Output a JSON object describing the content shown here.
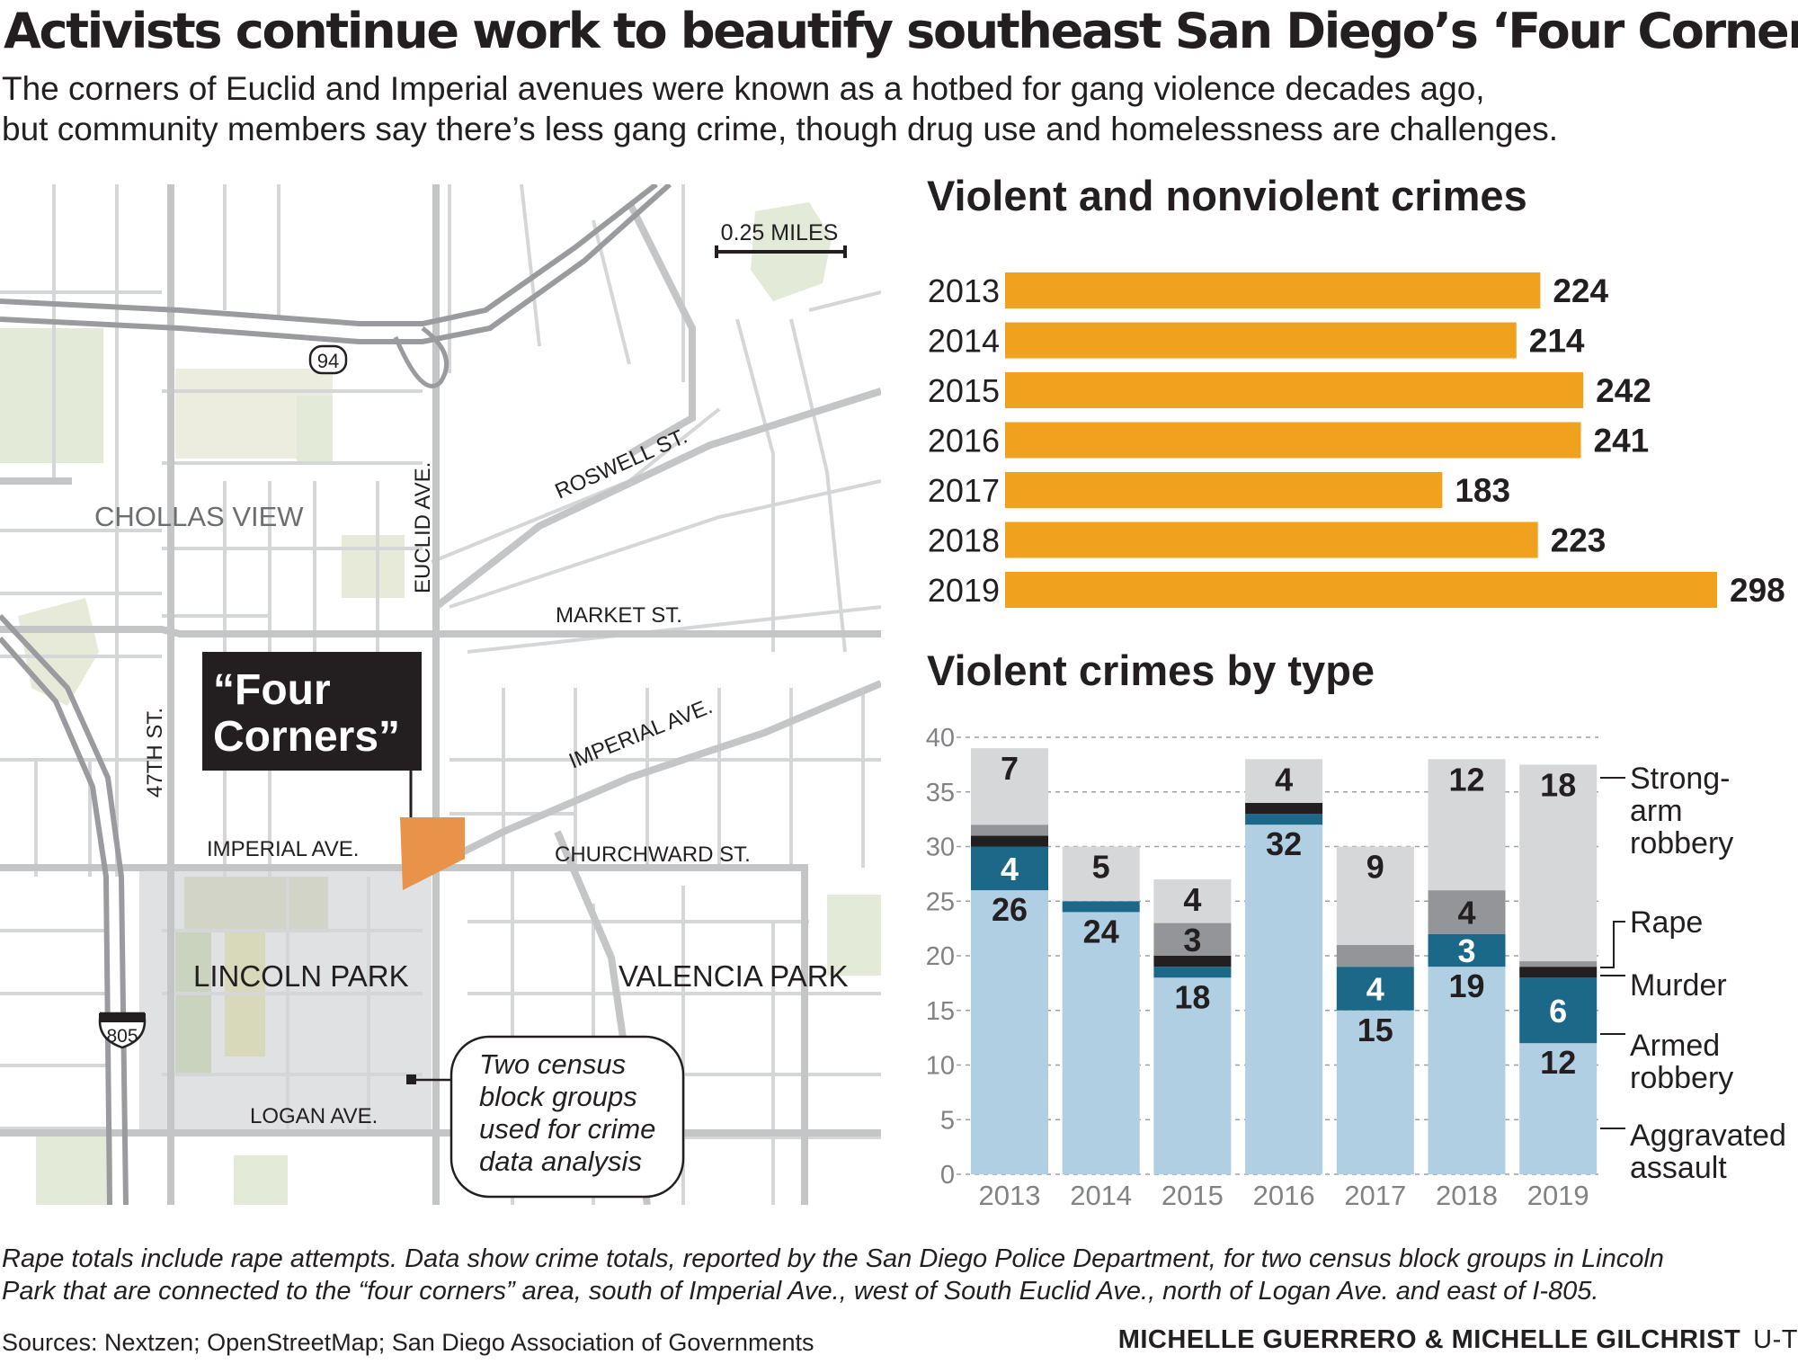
{
  "headline": "Activists continue work to beautify southeast San Diego’s ‘Four Corners’",
  "deck": [
    "The corners of Euclid and Imperial avenues were known as a hotbed for gang violence decades ago,",
    "but community members say there’s less gang crime, though drug use and homelessness are challenges."
  ],
  "map": {
    "scale_label": "0.25 MILES",
    "highway_94": "94",
    "highway_805": "805",
    "neighborhoods": {
      "chollas_view": "CHOLLAS VIEW",
      "lincoln_park": "LINCOLN PARK",
      "valencia_park": "VALENCIA PARK"
    },
    "streets": {
      "euclid": "EUCLID AVE.",
      "roswell": "ROSWELL ST.",
      "market": "MARKET ST.",
      "imperial_east": "IMPERIAL AVE.",
      "imperial_west": "IMPERIAL AVE.",
      "churchward": "CHURCHWARD ST.",
      "forty_seventh": "47TH ST.",
      "logan": "LOGAN AVE."
    },
    "four_corners_label": [
      "“Four",
      "Corners”"
    ],
    "callout": [
      "Two census",
      "block groups",
      "used for crime",
      "data analysis"
    ],
    "colors": {
      "land": "#ffffff",
      "road": "#c9cacc",
      "highway": "#9a9b9e",
      "park": "#e3ead7",
      "study_area": "#e0e1e3",
      "four_corners": "#e8924a"
    }
  },
  "chart_data": [
    {
      "type": "bar",
      "title": "Violent and nonviolent crimes",
      "categories": [
        "2013",
        "2014",
        "2015",
        "2016",
        "2017",
        "2018",
        "2019"
      ],
      "values": [
        224,
        214,
        242,
        241,
        183,
        223,
        298
      ],
      "orientation": "horizontal",
      "color": "#f0a21f"
    },
    {
      "type": "bar",
      "stacked": true,
      "title": "Violent crimes by type",
      "categories": [
        "2013",
        "2014",
        "2015",
        "2016",
        "2017",
        "2018",
        "2019"
      ],
      "ylim": [
        0,
        40
      ],
      "yticks": [
        "0",
        "5",
        "10",
        "15",
        "20",
        "25",
        "30",
        "35",
        "40"
      ],
      "grid": true,
      "legend_position": "right",
      "series": [
        {
          "name": "Aggravated assault",
          "legend": [
            "Aggravated",
            "assault"
          ],
          "color": "#b0cfe2",
          "values": [
            26,
            24,
            18,
            32,
            15,
            19,
            12
          ],
          "labels": [
            "26",
            "24",
            "18",
            "32",
            "15",
            "19",
            "12"
          ]
        },
        {
          "name": "Armed robbery",
          "legend": [
            "Armed",
            "robbery"
          ],
          "color": "#1b6889",
          "values": [
            4,
            1,
            1,
            1,
            4,
            3,
            6
          ],
          "labels": [
            "4",
            "",
            "",
            "",
            "4",
            "3",
            "6"
          ]
        },
        {
          "name": "Murder",
          "legend": [
            "Murder"
          ],
          "color": "#231f20",
          "values": [
            1,
            0,
            1,
            1,
            0,
            0,
            1
          ],
          "labels": [
            "",
            "",
            "",
            "",
            "",
            "",
            ""
          ]
        },
        {
          "name": "Rape",
          "legend": [
            "Rape"
          ],
          "color": "#939598",
          "values": [
            1,
            0,
            3,
            0,
            2,
            4,
            0.5
          ],
          "labels": [
            "",
            "",
            "3",
            "",
            "",
            "4",
            ""
          ]
        },
        {
          "name": "Strong-arm robbery",
          "legend": [
            "Strong-",
            "arm",
            "robbery"
          ],
          "color": "#d6d7d9",
          "values": [
            7,
            5,
            4,
            4,
            9,
            12,
            18
          ],
          "labels": [
            "7",
            "5",
            "4",
            "4",
            "9",
            "12",
            "18"
          ]
        }
      ]
    }
  ],
  "note": [
    "Rape totals include rape attempts. Data show crime totals, reported by the San Diego Police Department, for two census block groups in Lincoln",
    "Park that are connected to the “four corners” area, south of Imperial Ave., west of South Euclid Ave., north of Logan Ave. and east of I-805."
  ],
  "sources": "Sources: Nextzen; OpenStreetMap; San Diego Association of Governments",
  "credit": "MICHELLE GUERRERO & MICHELLE GILCHRIST",
  "credit_org": "U-T"
}
